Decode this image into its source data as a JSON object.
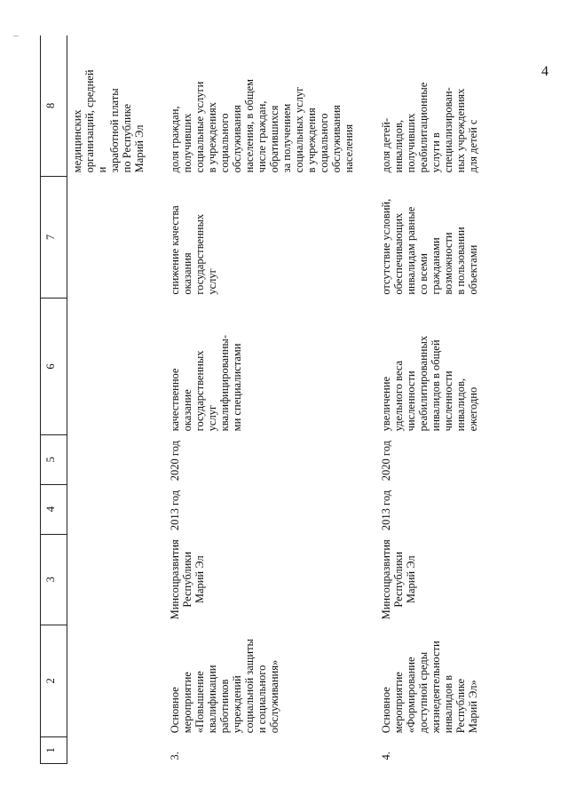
{
  "page_number": "4",
  "table": {
    "headers": [
      "1",
      "2",
      "3",
      "4",
      "5",
      "6",
      "7",
      "8"
    ],
    "continuation": {
      "indicator": [
        "медицинских",
        "организаций, средней",
        "и",
        "заработной платы",
        "по Республике",
        "Марий Эл"
      ]
    },
    "rows": [
      {
        "num": "3.",
        "name": [
          "Основное",
          "мероприятие",
          "«Повышение",
          "квалификации",
          "работников",
          "учреждений",
          "социальной защиты",
          "и социального",
          "обслуживания»"
        ],
        "executor": [
          "Минсоцразвития",
          "Республики",
          "Марий Эл"
        ],
        "start": "2013 год",
        "end": "2020 год",
        "result": [
          "качественное",
          "оказание",
          "государственных",
          "услуг",
          "квалифицированны-",
          "ми специалистами"
        ],
        "consequence": [
          "снижение качества",
          "оказания",
          "государственных",
          "услуг"
        ],
        "indicator": [
          "доля граждан,",
          "получивших",
          "социальные услуги",
          "в учреждениях",
          "социального",
          "обслуживания",
          "населения, в общем",
          "числе граждан,",
          "обратившихся",
          "за получением",
          "социальных услуг",
          "в учреждения",
          "социального",
          "обслуживания",
          "населения"
        ]
      },
      {
        "num": "4.",
        "name": [
          "Основное",
          "мероприятие",
          "«Формирование",
          "доступной среды",
          "жизнедеятельности",
          "инвалидов в",
          "Республике",
          "Марий Эл»"
        ],
        "executor": [
          "Минсоцразвития",
          "Республики",
          "Марий Эл"
        ],
        "start": "2013 год",
        "end": "2020 год",
        "result": [
          "увеличение",
          "удельного веса",
          "численности",
          "реабилитированных",
          "инвалидов в общей",
          "численности",
          "инвалидов,",
          "ежегодно"
        ],
        "consequence": [
          "отсутствие условий,",
          "обеспечивающих",
          "инвалидам равные",
          "со всеми",
          "гражданами",
          "возможности",
          "в пользовании",
          "объектами"
        ],
        "indicator": [
          "доля детей-",
          "инвалидов,",
          "получивших",
          "реабилитационные",
          "услуги в",
          "специализирован-",
          "ных учреждениях",
          "для детей с"
        ]
      }
    ]
  }
}
